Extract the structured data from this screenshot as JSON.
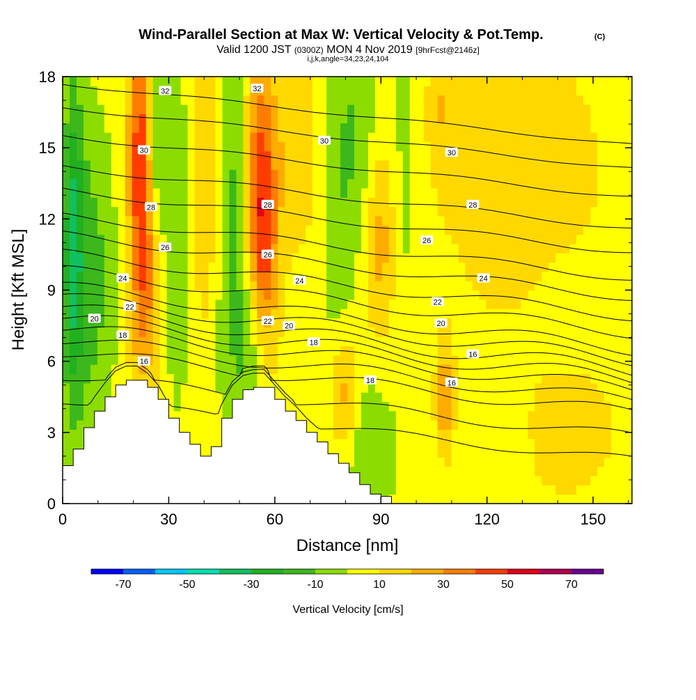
{
  "chart_data": {
    "type": "heatmap",
    "title": "Wind-Parallel Section at Max W: Vertical Velocity & Pot.Temp.",
    "title_mark": "(C)",
    "subtitle_main_a": "Valid 1200 JST",
    "subtitle_small_a": "(0300Z)",
    "subtitle_main_b": "MON 4 Nov 2019",
    "subtitle_small_b": "[9hrFcst@2146z]",
    "subtitle_line3": "i,j,k,angle=34,23,24,104",
    "xlabel": "Distance [nm]",
    "ylabel": "Height [Kft MSL]",
    "xlim": [
      0,
      161
    ],
    "ylim": [
      0,
      18
    ],
    "x_ticks": [
      0,
      30,
      60,
      90,
      120,
      150
    ],
    "y_ticks": [
      0,
      3,
      6,
      9,
      12,
      15,
      18
    ],
    "colorbar": {
      "title": "Vertical Velocity [cm/s]",
      "tick_labels": [
        "-70",
        "-50",
        "-30",
        "-10",
        "10",
        "30",
        "50",
        "70"
      ],
      "tick_values": [
        -70,
        -50,
        -30,
        -10,
        10,
        30,
        50,
        70
      ],
      "bounds": [
        -80,
        -70,
        -60,
        -50,
        -40,
        -30,
        -20,
        -10,
        0,
        10,
        20,
        30,
        40,
        50,
        60,
        70,
        80
      ],
      "colors": [
        "#0000ff",
        "#0060ff",
        "#00c8ff",
        "#00e0b0",
        "#10c060",
        "#20b020",
        "#3cb81c",
        "#8cdc00",
        "#ffff00",
        "#ffd800",
        "#ffac00",
        "#ff7c00",
        "#ff3c00",
        "#e00018",
        "#b00050",
        "#6c0090"
      ]
    },
    "vertical_velocity_features": [
      {
        "x": 8,
        "y": 9.5,
        "value": -20,
        "sx": 5,
        "sy": 5
      },
      {
        "x": 3,
        "y": 11,
        "value": -30,
        "sx": 2,
        "sy": 5
      },
      {
        "x": 22,
        "y": 15,
        "value": 35,
        "sx": 2.5,
        "sy": 4
      },
      {
        "x": 23,
        "y": 8,
        "value": 15,
        "sx": 3,
        "sy": 3
      },
      {
        "x": 24,
        "y": 12,
        "value": 15,
        "sx": 3,
        "sy": 4
      },
      {
        "x": 26,
        "y": 15,
        "value": -25,
        "sx": 2,
        "sy": 3
      },
      {
        "x": 32,
        "y": 12,
        "value": -12,
        "sx": 3,
        "sy": 5
      },
      {
        "x": 40,
        "y": 14,
        "value": 18,
        "sx": 3,
        "sy": 5
      },
      {
        "x": 48,
        "y": 12,
        "value": -15,
        "sx": 3,
        "sy": 6
      },
      {
        "x": 53,
        "y": 7,
        "value": -15,
        "sx": 3,
        "sy": 2
      },
      {
        "x": 56,
        "y": 14,
        "value": 35,
        "sx": 3,
        "sy": 4
      },
      {
        "x": 57,
        "y": 10,
        "value": 20,
        "sx": 3,
        "sy": 3
      },
      {
        "x": 66,
        "y": 15,
        "value": 12,
        "sx": 5,
        "sy": 3
      },
      {
        "x": 78,
        "y": 11,
        "value": -12,
        "sx": 4,
        "sy": 5
      },
      {
        "x": 83,
        "y": 16,
        "value": -12,
        "sx": 5,
        "sy": 3
      },
      {
        "x": 80,
        "y": 4.5,
        "value": 25,
        "sx": 3,
        "sy": 2
      },
      {
        "x": 85,
        "y": 2.5,
        "value": -15,
        "sx": 5,
        "sy": 2
      },
      {
        "x": 90,
        "y": 11,
        "value": 20,
        "sx": 3,
        "sy": 3
      },
      {
        "x": 97,
        "y": 14,
        "value": -8,
        "sx": 3,
        "sy": 4
      },
      {
        "x": 108,
        "y": 4.5,
        "value": 25,
        "sx": 2,
        "sy": 1.8
      },
      {
        "x": 107,
        "y": 17,
        "value": 12,
        "sx": 3,
        "sy": 2
      },
      {
        "x": 130,
        "y": 14,
        "value": 14,
        "sx": 20,
        "sy": 4
      },
      {
        "x": 145,
        "y": 3,
        "value": 14,
        "sx": 10,
        "sy": 2
      },
      {
        "x": 125,
        "y": 3,
        "value": -5,
        "sx": 6,
        "sy": 2
      },
      {
        "x": 140,
        "y": 9,
        "value": -3,
        "sx": 8,
        "sy": 2
      }
    ],
    "theta_contours": [
      {
        "value": 16,
        "base_height": 4.4,
        "slope": 0.004
      },
      {
        "value": 17,
        "base_height": 5.4,
        "slope": 0.004
      },
      {
        "value": 18,
        "base_height": 6.4,
        "slope": 0.004
      },
      {
        "value": 19,
        "base_height": 6.9,
        "slope": 0.004
      },
      {
        "value": 20,
        "base_height": 7.4,
        "slope": 0.004
      },
      {
        "value": 21,
        "base_height": 7.8,
        "slope": 0.004
      },
      {
        "value": 22,
        "base_height": 8.2,
        "slope": 0.004
      },
      {
        "value": 23,
        "base_height": 8.65,
        "slope": 0.004
      },
      {
        "value": 24,
        "base_height": 9.1,
        "slope": 0.004
      },
      {
        "value": 25,
        "base_height": 9.8,
        "slope": 0.004
      },
      {
        "value": 26,
        "base_height": 10.5,
        "slope": 0.004
      },
      {
        "value": 27,
        "base_height": 11.3,
        "slope": 0.004
      },
      {
        "value": 28,
        "base_height": 12.1,
        "slope": 0.004
      },
      {
        "value": 29,
        "base_height": 13.2,
        "slope": 0.004
      },
      {
        "value": 30,
        "base_height": 14.2,
        "slope": 0.004
      },
      {
        "value": 31,
        "base_height": 15.5,
        "slope": 0.004
      },
      {
        "value": 32,
        "base_height": 16.7,
        "slope": 0.004
      },
      {
        "value": 33,
        "base_height": 17.7,
        "slope": 0.004
      }
    ],
    "contour_labels": [
      {
        "text": "32",
        "x": 29,
        "y": 17.4
      },
      {
        "text": "30",
        "x": 23,
        "y": 14.9
      },
      {
        "text": "28",
        "x": 25,
        "y": 12.5
      },
      {
        "text": "26",
        "x": 29,
        "y": 10.8
      },
      {
        "text": "24",
        "x": 17,
        "y": 9.5
      },
      {
        "text": "22",
        "x": 19,
        "y": 8.3
      },
      {
        "text": "20",
        "x": 9,
        "y": 7.8
      },
      {
        "text": "18",
        "x": 17,
        "y": 7.1
      },
      {
        "text": "16",
        "x": 23,
        "y": 6.0
      },
      {
        "text": "32",
        "x": 55,
        "y": 17.5
      },
      {
        "text": "30",
        "x": 74,
        "y": 15.3
      },
      {
        "text": "30",
        "x": 110,
        "y": 14.8
      },
      {
        "text": "28",
        "x": 58,
        "y": 12.6
      },
      {
        "text": "28",
        "x": 116,
        "y": 12.6
      },
      {
        "text": "26",
        "x": 58,
        "y": 10.5
      },
      {
        "text": "26",
        "x": 103,
        "y": 11.1
      },
      {
        "text": "24",
        "x": 67,
        "y": 9.4
      },
      {
        "text": "24",
        "x": 119,
        "y": 9.5
      },
      {
        "text": "22",
        "x": 58,
        "y": 7.7
      },
      {
        "text": "22",
        "x": 106,
        "y": 8.5
      },
      {
        "text": "20",
        "x": 64,
        "y": 7.5
      },
      {
        "text": "20",
        "x": 107,
        "y": 7.6
      },
      {
        "text": "18",
        "x": 71,
        "y": 6.8
      },
      {
        "text": "18",
        "x": 87,
        "y": 5.2
      },
      {
        "text": "16",
        "x": 116,
        "y": 6.3
      },
      {
        "text": "16",
        "x": 110,
        "y": 5.1
      }
    ],
    "terrain": {
      "x": [
        0,
        3,
        6,
        9,
        12,
        15,
        18,
        21,
        24,
        27,
        30,
        33,
        36,
        39,
        42,
        45,
        48,
        51,
        54,
        57,
        60,
        63,
        66,
        69,
        72,
        75,
        78,
        81,
        84,
        87,
        90
      ],
      "height": [
        1.6,
        2.3,
        3.2,
        3.9,
        4.5,
        5.0,
        5.2,
        5.2,
        4.9,
        4.4,
        3.6,
        3.0,
        2.5,
        2.0,
        2.4,
        3.6,
        4.4,
        4.8,
        4.9,
        4.9,
        4.4,
        3.9,
        3.5,
        3.0,
        2.6,
        2.1,
        1.7,
        1.3,
        0.8,
        0.4,
        0.3
      ]
    }
  }
}
